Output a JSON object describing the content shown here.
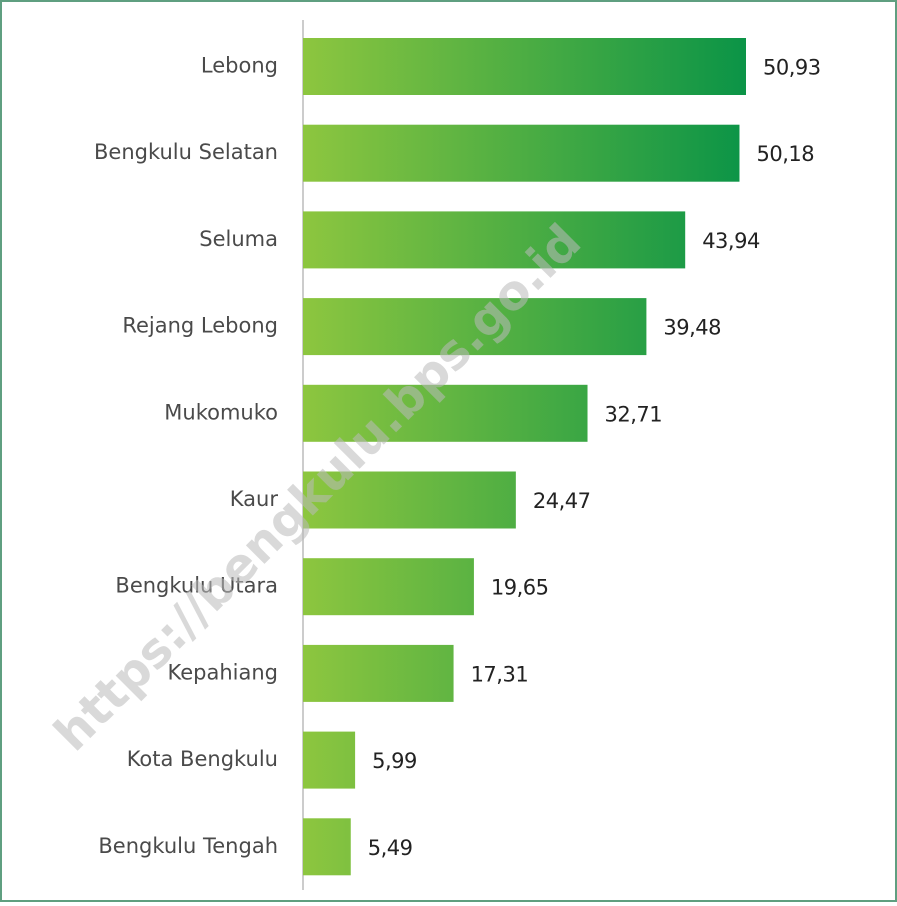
{
  "chart_data": {
    "type": "barh",
    "categories": [
      "Lebong",
      "Bengkulu Selatan",
      "Seluma",
      "Rejang Lebong",
      "Mukomuko",
      "Kaur",
      "Bengkulu Utara",
      "Kepahiang",
      "Kota Bengkulu",
      "Bengkulu Tengah"
    ],
    "values": [
      50.93,
      50.18,
      43.94,
      39.48,
      32.71,
      24.47,
      19.65,
      17.31,
      5.99,
      5.49
    ],
    "value_labels": [
      "50,93",
      "50,18",
      "43,94",
      "39,48",
      "32,71",
      "24,47",
      "19,65",
      "17,31",
      "5,99",
      "5,49"
    ],
    "colors": [
      "#8dc63f",
      "#0b9447"
    ],
    "watermark": "https://bengkulu.bps.go.id"
  }
}
